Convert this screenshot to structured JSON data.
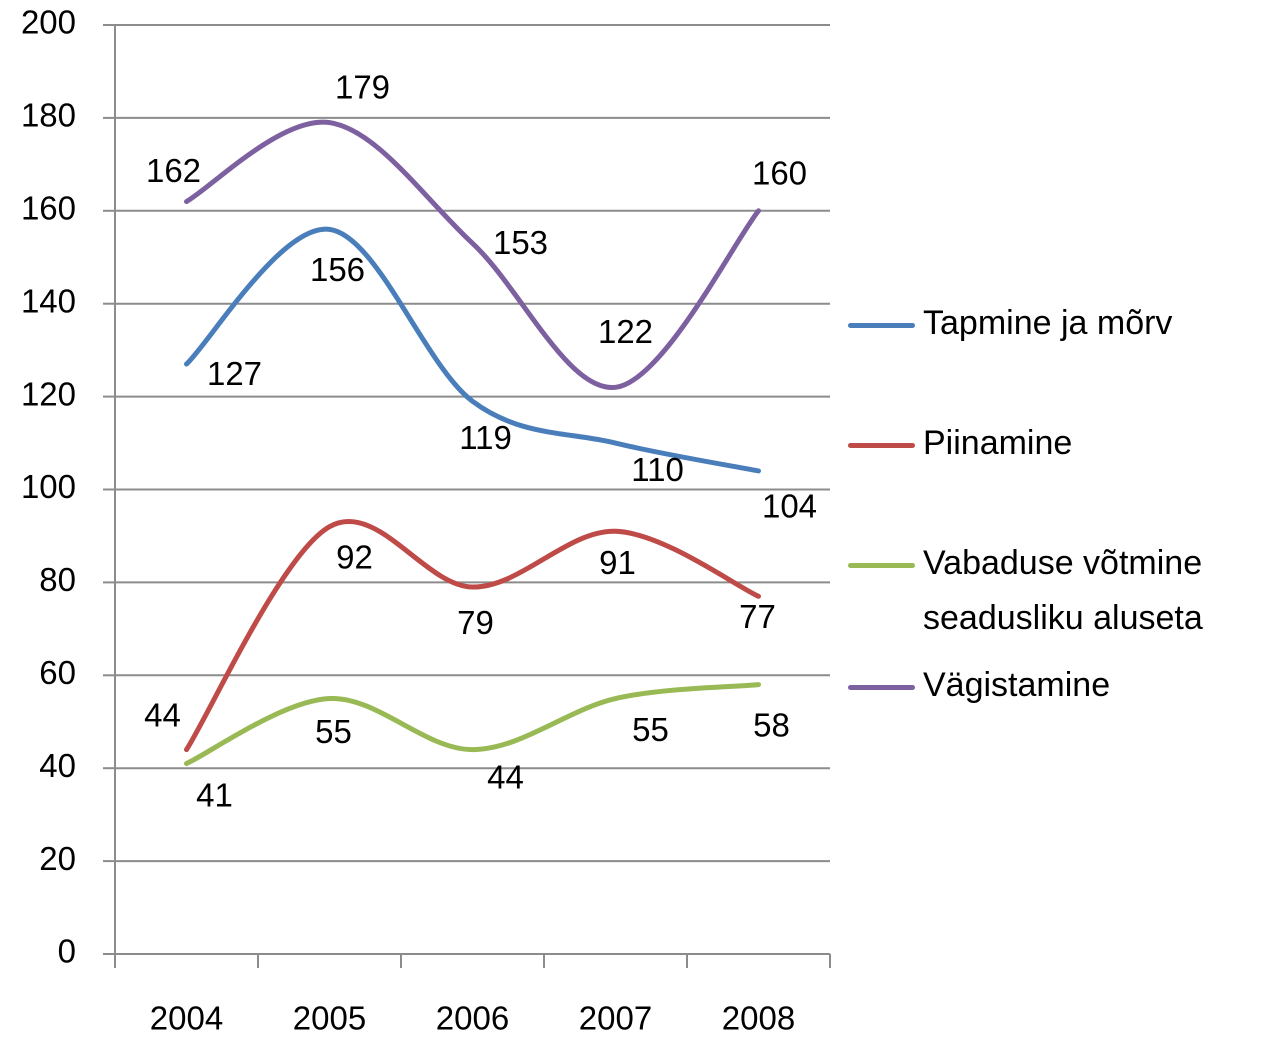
{
  "chart_data": {
    "type": "line",
    "categories": [
      "2004",
      "2005",
      "2006",
      "2007",
      "2008"
    ],
    "series": [
      {
        "name": "Tapmine ja mõrv",
        "color": "#4a7ebb",
        "values": [
          127,
          156,
          119,
          110,
          104
        ]
      },
      {
        "name": "Piinamine",
        "color": "#be4b48",
        "values": [
          44,
          92,
          79,
          91,
          77
        ]
      },
      {
        "name": "Vabaduse võtmine seadusliku aluseta",
        "color": "#98b954",
        "values": [
          41,
          55,
          44,
          55,
          58
        ]
      },
      {
        "name": "Vägistamine",
        "color": "#7d60a0",
        "values": [
          162,
          179,
          153,
          122,
          160
        ]
      }
    ],
    "ylim": [
      0,
      200
    ],
    "yticks": [
      0,
      20,
      40,
      60,
      80,
      100,
      120,
      140,
      160,
      180,
      200
    ],
    "grid": true,
    "smooth": true,
    "legend": "right"
  }
}
